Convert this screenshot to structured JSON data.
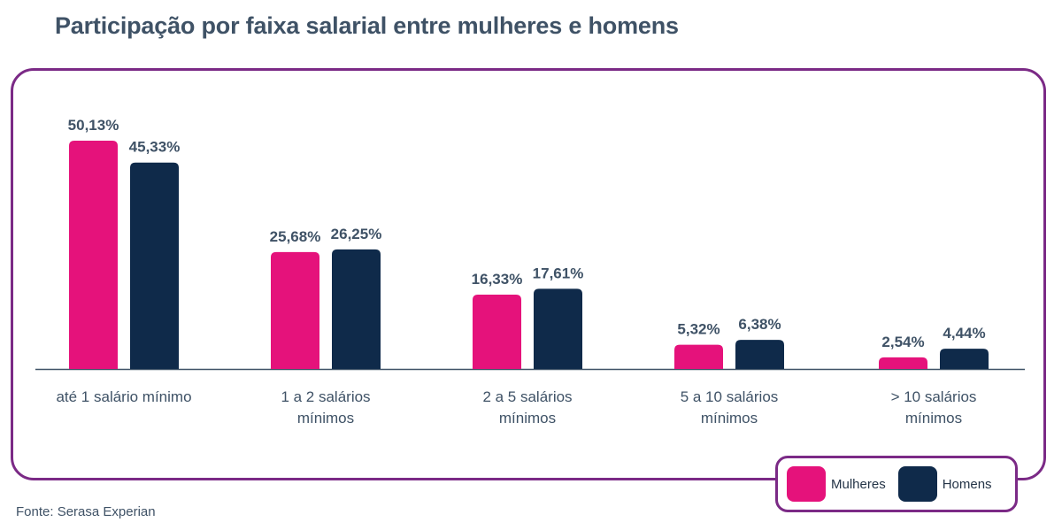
{
  "title": "Participação por faixa salarial entre mulheres e homens",
  "source": "Fonte: Serasa Experian",
  "colors": {
    "women": "#e5127b",
    "men": "#0f2a4a",
    "frame": "#7b2a86",
    "label": "#3f5266"
  },
  "legend": [
    {
      "label": "Mulheres",
      "color": "#e5127b"
    },
    {
      "label": "Homens",
      "color": "#0f2a4a"
    }
  ],
  "chart_data": {
    "type": "bar",
    "title": "Participação por faixa salarial entre mulheres e homens",
    "categories": [
      [
        "até 1 salário mínimo"
      ],
      [
        "1 a 2 salários",
        "mínimos"
      ],
      [
        "2 a 5 salários",
        "mínimos"
      ],
      [
        "5 a 10 salários",
        "mínimos"
      ],
      [
        "> 10 salários",
        "mínimos"
      ]
    ],
    "series": [
      {
        "name": "Mulheres",
        "color": "#e5127b",
        "values": [
          50.13,
          25.68,
          16.33,
          5.32,
          2.54
        ],
        "labels": [
          "50,13%",
          "25,68%",
          "16,33%",
          "5,32%",
          "2,54%"
        ]
      },
      {
        "name": "Homens",
        "color": "#0f2a4a",
        "values": [
          45.33,
          26.25,
          17.61,
          6.38,
          4.44
        ],
        "labels": [
          "45,33%",
          "26,25%",
          "17,61%",
          "6,38%",
          "4,44%"
        ]
      }
    ],
    "ylim": [
      0,
      50.13
    ],
    "legend_position": "bottom-right",
    "grid": false
  }
}
